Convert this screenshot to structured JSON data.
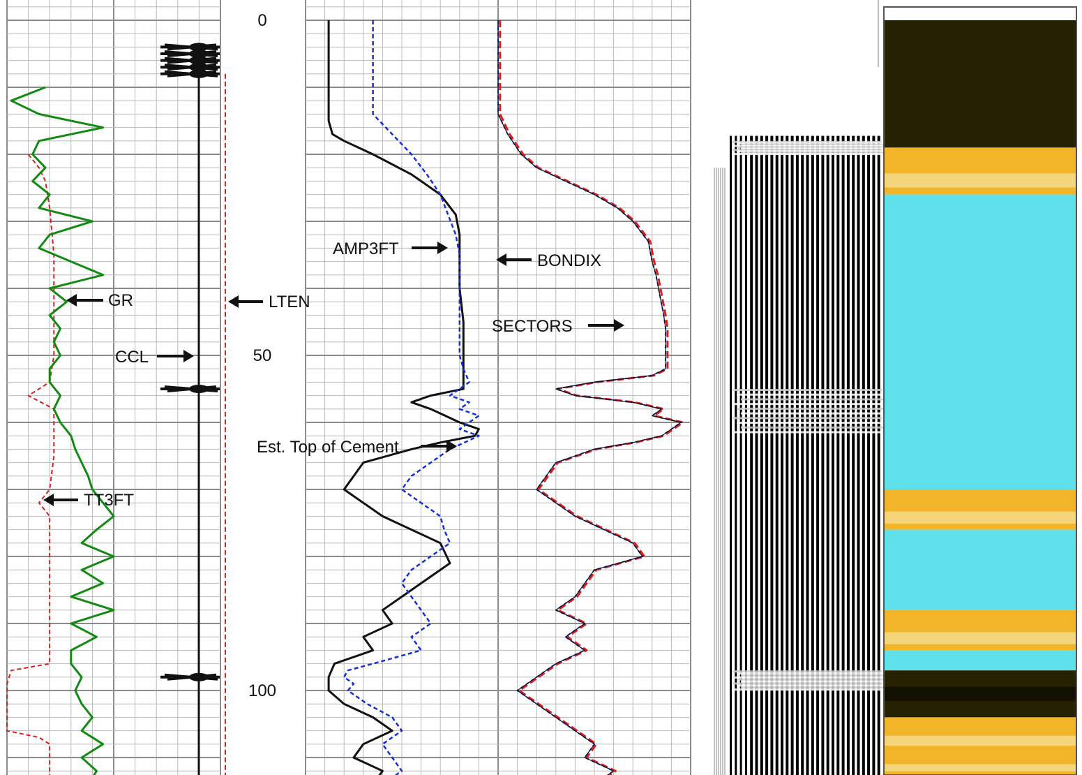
{
  "chart_data": {
    "type": "line",
    "title": "",
    "y_axis": {
      "label": "",
      "range": [
        0,
        116
      ],
      "inverted": true,
      "ticks": [
        0,
        50,
        100
      ]
    },
    "depth_labels": [
      "0",
      "50",
      "100"
    ],
    "colors": {
      "grid_major": "#8c8c8c",
      "grid_minor": "#b9b9b9",
      "gr": "#138a13",
      "ccl": "#111111",
      "lten": "#dd1c1c",
      "tt3ft": "#dd1c1c",
      "amp3ft": "#111111",
      "bondix": "#1530d8",
      "sectors_red": "#dd1c1c",
      "sectors_blue": "#1530d8",
      "map_cyan": "#5fe0ea",
      "map_yellow": "#f2b428",
      "map_dark": "#262100"
    },
    "annotations": {
      "gr": "GR",
      "ccl": "CCL",
      "lten": "LTEN",
      "tt3ft": "TT3FT",
      "amp3ft": "AMP3FT",
      "bondix": "BONDIX",
      "sectors": "SECTORS",
      "toc": "Est. Top of Cement"
    },
    "series": [
      {
        "name": "GR",
        "depth": [
          10,
          12,
          14,
          16,
          18,
          20,
          22,
          24,
          26,
          28,
          30,
          32,
          34,
          36,
          38,
          40,
          42,
          44,
          46,
          48,
          50,
          52,
          54,
          56,
          58,
          60,
          62,
          64,
          66,
          68,
          70,
          72,
          74,
          76,
          78,
          80,
          82,
          84,
          86,
          88,
          90,
          92,
          94,
          96,
          98,
          100,
          102,
          104,
          106,
          108,
          110,
          112,
          114,
          116
        ],
        "value": [
          0.18,
          0.02,
          0.15,
          0.45,
          0.15,
          0.12,
          0.18,
          0.12,
          0.2,
          0.15,
          0.4,
          0.2,
          0.15,
          0.3,
          0.45,
          0.2,
          0.28,
          0.2,
          0.25,
          0.22,
          0.25,
          0.2,
          0.2,
          0.25,
          0.22,
          0.25,
          0.3,
          0.32,
          0.35,
          0.38,
          0.4,
          0.45,
          0.5,
          0.42,
          0.35,
          0.5,
          0.35,
          0.45,
          0.3,
          0.5,
          0.3,
          0.42,
          0.3,
          0.3,
          0.35,
          0.32,
          0.35,
          0.4,
          0.35,
          0.45,
          0.35,
          0.42,
          0.38,
          0.45
        ]
      },
      {
        "name": "TT3FT",
        "depth": [
          20,
          22,
          24,
          28,
          35,
          40,
          45,
          50,
          54,
          56,
          58,
          60,
          65,
          70,
          72,
          74,
          76,
          80,
          90,
          96,
          97,
          99,
          106,
          107,
          108,
          109,
          116
        ],
        "value": [
          0.1,
          0.15,
          0.18,
          0.2,
          0.22,
          0.22,
          0.22,
          0.22,
          0.2,
          0.1,
          0.22,
          0.22,
          0.22,
          0.2,
          0.15,
          0.2,
          0.2,
          0.2,
          0.2,
          0.2,
          0.02,
          0.0,
          0.0,
          0.15,
          0.2,
          0.2,
          0.2
        ]
      },
      {
        "name": "AMP3FT",
        "depth": [
          0,
          15,
          17,
          18,
          20,
          23,
          26,
          29,
          32,
          35,
          40,
          45,
          50,
          55,
          56,
          57,
          58,
          60,
          61,
          62,
          63,
          64,
          66,
          70,
          74,
          78,
          81,
          84,
          86,
          88,
          90,
          92,
          94,
          96,
          98,
          100,
          102,
          104,
          106,
          108,
          110,
          112,
          114,
          116
        ],
        "value": [
          0.12,
          0.12,
          0.14,
          0.2,
          0.35,
          0.55,
          0.7,
          0.78,
          0.8,
          0.8,
          0.8,
          0.82,
          0.82,
          0.82,
          0.65,
          0.55,
          0.65,
          0.8,
          0.9,
          0.88,
          0.7,
          0.55,
          0.3,
          0.2,
          0.4,
          0.7,
          0.75,
          0.6,
          0.5,
          0.4,
          0.45,
          0.3,
          0.35,
          0.15,
          0.12,
          0.12,
          0.2,
          0.35,
          0.45,
          0.3,
          0.25,
          0.4,
          0.35,
          0.5
        ]
      },
      {
        "name": "BONDIX",
        "depth": [
          0,
          14,
          17,
          20,
          23,
          26,
          29,
          32,
          35,
          38,
          40,
          42,
          44,
          46,
          47,
          48,
          49,
          50,
          52,
          54,
          55,
          56,
          57,
          58,
          59,
          60,
          61,
          62,
          64,
          66,
          68,
          70,
          72,
          74,
          76,
          78,
          80,
          82,
          84,
          86,
          88,
          90,
          92,
          94,
          96,
          97,
          98,
          99,
          100,
          102,
          104,
          106,
          108,
          110,
          112,
          114,
          116
        ],
        "value": [
          0.35,
          0.35,
          0.45,
          0.55,
          0.63,
          0.7,
          0.74,
          0.78,
          0.8,
          0.8,
          0.8,
          0.8,
          0.8,
          0.8,
          0.8,
          0.8,
          0.8,
          0.8,
          0.82,
          0.85,
          0.8,
          0.75,
          0.85,
          0.8,
          0.9,
          0.85,
          0.8,
          0.9,
          0.75,
          0.65,
          0.55,
          0.5,
          0.6,
          0.7,
          0.72,
          0.75,
          0.65,
          0.55,
          0.5,
          0.55,
          0.6,
          0.65,
          0.55,
          0.6,
          0.35,
          0.22,
          0.2,
          0.25,
          0.22,
          0.32,
          0.45,
          0.5,
          0.4,
          0.45,
          0.5,
          0.4,
          0.5
        ]
      },
      {
        "name": "SECTORS",
        "depth": [
          0,
          14,
          17,
          20,
          22,
          24,
          26,
          28,
          30,
          33,
          36,
          38,
          41,
          44,
          46,
          49,
          52,
          53,
          54,
          55,
          56,
          57,
          58,
          59,
          60,
          61,
          62,
          63,
          64,
          66,
          68,
          70,
          72,
          74,
          76,
          78,
          80,
          82,
          84,
          86,
          88,
          90,
          92,
          94,
          96,
          98,
          100,
          102,
          104,
          106,
          108,
          110,
          112,
          114,
          116
        ],
        "value": [
          0.0,
          0.0,
          0.05,
          0.12,
          0.2,
          0.35,
          0.5,
          0.62,
          0.7,
          0.78,
          0.8,
          0.82,
          0.84,
          0.86,
          0.87,
          0.87,
          0.87,
          0.8,
          0.5,
          0.3,
          0.4,
          0.7,
          0.85,
          0.8,
          0.95,
          0.9,
          0.85,
          0.7,
          0.5,
          0.3,
          0.25,
          0.2,
          0.3,
          0.4,
          0.55,
          0.7,
          0.75,
          0.5,
          0.45,
          0.4,
          0.3,
          0.45,
          0.35,
          0.45,
          0.3,
          0.2,
          0.1,
          0.2,
          0.3,
          0.4,
          0.5,
          0.45,
          0.6,
          0.5,
          0.55
        ]
      }
    ],
    "ccl_spikes_depth": [
      4,
      5,
      6,
      7,
      8,
      55,
      98
    ],
    "vdl_bands": [
      {
        "from": 18,
        "to": 20,
        "kind": "noisy"
      },
      {
        "from": 55,
        "to": 62,
        "kind": "noisy"
      },
      {
        "from": 97,
        "to": 100,
        "kind": "noisy"
      }
    ],
    "cement_map_bands": [
      {
        "from": 0,
        "to": 19,
        "color": "dark"
      },
      {
        "from": 19,
        "to": 26,
        "color": "yellow"
      },
      {
        "from": 26,
        "to": 70,
        "color": "cyan"
      },
      {
        "from": 70,
        "to": 76,
        "color": "yellow"
      },
      {
        "from": 76,
        "to": 88,
        "color": "cyan"
      },
      {
        "from": 88,
        "to": 94,
        "color": "yellow"
      },
      {
        "from": 94,
        "to": 97,
        "color": "cyan"
      },
      {
        "from": 97,
        "to": 104,
        "color": "dark"
      },
      {
        "from": 104,
        "to": 109,
        "color": "yellow"
      },
      {
        "from": 109,
        "to": 116,
        "color": "yellow"
      }
    ]
  }
}
